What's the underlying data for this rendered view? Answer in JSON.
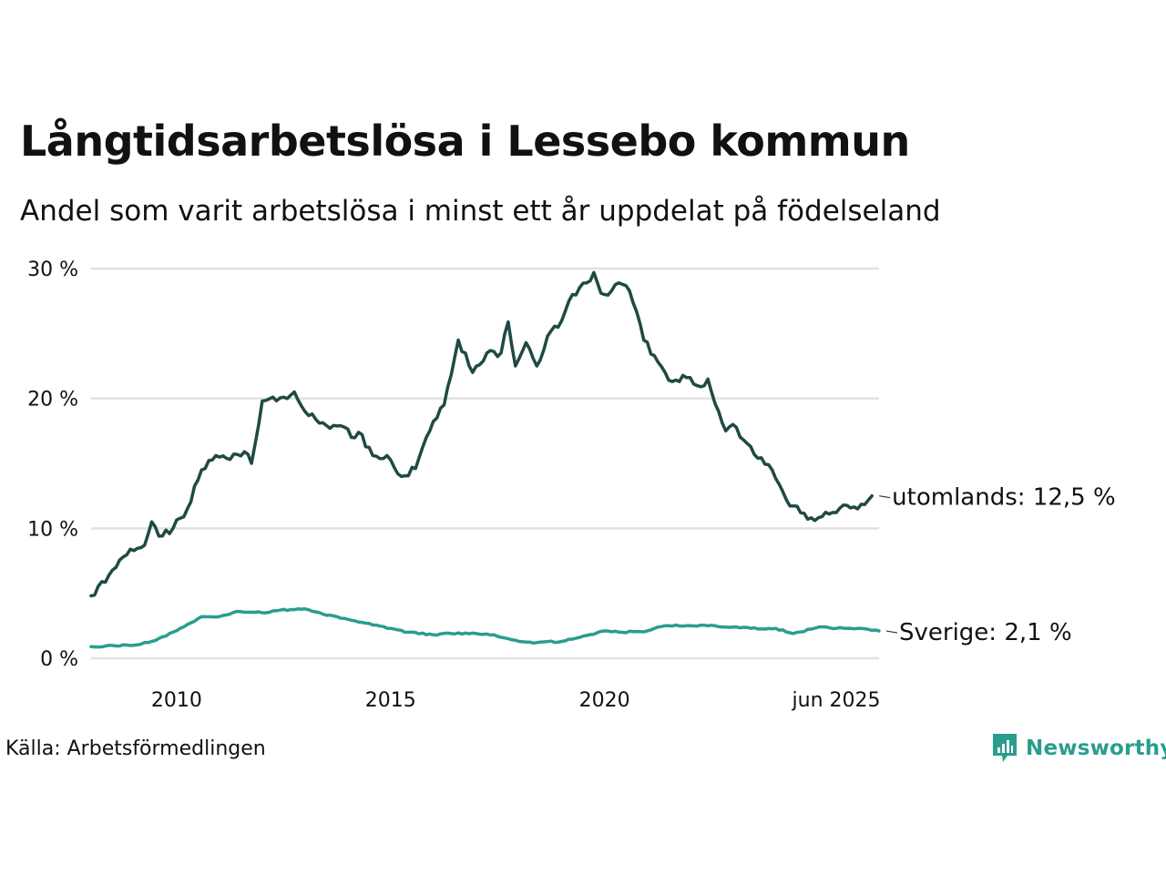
{
  "title": "Långtidsarbetslösa i Lessebo kommun",
  "subtitle": "Andel som varit arbetslösa i minst ett år uppdelat på födelseland",
  "source": "Källa: Arbetsförmedlingen",
  "brand": {
    "name": "Newsworthy",
    "icon": "newsworthy-logo-icon",
    "color": "#2a9d8f"
  },
  "chart_data": {
    "type": "line",
    "title": "Långtidsarbetslösa i Lessebo kommun",
    "subtitle": "Andel som varit arbetslösa i minst ett år uppdelat på födelseland",
    "x_start": "2008-01",
    "x_end": "2025-06",
    "x_ticks": [
      {
        "date": "2010-01",
        "label": "2010"
      },
      {
        "date": "2015-01",
        "label": "2015"
      },
      {
        "date": "2020-01",
        "label": "2020"
      },
      {
        "date": "2025-06",
        "label": "jun 2025"
      }
    ],
    "y_ticks": [
      {
        "value": 0,
        "label": "0 %"
      },
      {
        "value": 10,
        "label": "10 %"
      },
      {
        "value": 20,
        "label": "20 %"
      },
      {
        "value": 30,
        "label": "30 %"
      }
    ],
    "ylim": [
      0,
      30
    ],
    "grid": true,
    "series": [
      {
        "name": "utomlands",
        "end_label": "utomlands: 12,5 %",
        "color": "#1f4a44",
        "points": [
          [
            "2008-01",
            4.8
          ],
          [
            "2008-06",
            6.4
          ],
          [
            "2008-12",
            8.4
          ],
          [
            "2009-04",
            8.7
          ],
          [
            "2009-06",
            10.5
          ],
          [
            "2009-08",
            9.4
          ],
          [
            "2009-12",
            10.0
          ],
          [
            "2010-04",
            11.5
          ],
          [
            "2010-08",
            14.5
          ],
          [
            "2010-12",
            15.6
          ],
          [
            "2011-04",
            15.3
          ],
          [
            "2011-08",
            15.9
          ],
          [
            "2011-10",
            15.0
          ],
          [
            "2012-01",
            19.8
          ],
          [
            "2012-04",
            20.1
          ],
          [
            "2012-08",
            20.0
          ],
          [
            "2012-10",
            20.5
          ],
          [
            "2013-01",
            19.0
          ],
          [
            "2013-04",
            18.4
          ],
          [
            "2013-08",
            17.7
          ],
          [
            "2013-12",
            17.8
          ],
          [
            "2014-02",
            17.0
          ],
          [
            "2014-04",
            17.4
          ],
          [
            "2014-08",
            15.6
          ],
          [
            "2014-12",
            15.6
          ],
          [
            "2015-04",
            14.0
          ],
          [
            "2015-08",
            14.6
          ],
          [
            "2015-12",
            17.5
          ],
          [
            "2016-04",
            19.5
          ],
          [
            "2016-08",
            24.5
          ],
          [
            "2016-12",
            22.0
          ],
          [
            "2017-04",
            23.5
          ],
          [
            "2017-08",
            23.5
          ],
          [
            "2017-10",
            25.9
          ],
          [
            "2017-12",
            22.5
          ],
          [
            "2018-03",
            24.3
          ],
          [
            "2018-06",
            22.5
          ],
          [
            "2018-10",
            25.2
          ],
          [
            "2019-01",
            26.0
          ],
          [
            "2019-04",
            28.0
          ],
          [
            "2019-08",
            28.9
          ],
          [
            "2019-10",
            29.7
          ],
          [
            "2019-12",
            28.1
          ],
          [
            "2020-03",
            28.3
          ],
          [
            "2020-05",
            28.9
          ],
          [
            "2020-08",
            28.3
          ],
          [
            "2020-10",
            26.7
          ],
          [
            "2020-12",
            24.5
          ],
          [
            "2021-04",
            22.8
          ],
          [
            "2021-08",
            21.3
          ],
          [
            "2021-12",
            21.6
          ],
          [
            "2022-04",
            20.9
          ],
          [
            "2022-06",
            21.5
          ],
          [
            "2022-09",
            19.0
          ],
          [
            "2022-11",
            17.5
          ],
          [
            "2023-01",
            18.0
          ],
          [
            "2023-04",
            16.8
          ],
          [
            "2023-08",
            15.4
          ],
          [
            "2023-12",
            14.5
          ],
          [
            "2024-04",
            12.2
          ],
          [
            "2024-08",
            11.2
          ],
          [
            "2024-12",
            10.6
          ],
          [
            "2025-04",
            11.1
          ],
          [
            "2025-08",
            11.8
          ],
          [
            "2025-12",
            11.5
          ],
          [
            "2026-04",
            12.5
          ]
        ]
      },
      {
        "name": "Sverige",
        "end_label": "Sverige:  2,1 %",
        "color": "#2a9d8f",
        "points": [
          [
            "2008-01",
            0.9
          ],
          [
            "2009-01",
            1.0
          ],
          [
            "2009-06",
            1.3
          ],
          [
            "2009-10",
            1.7
          ],
          [
            "2010-04",
            2.6
          ],
          [
            "2010-08",
            3.2
          ],
          [
            "2011-01",
            3.2
          ],
          [
            "2011-06",
            3.6
          ],
          [
            "2012-01",
            3.5
          ],
          [
            "2012-06",
            3.7
          ],
          [
            "2013-01",
            3.8
          ],
          [
            "2013-06",
            3.4
          ],
          [
            "2014-01",
            3.0
          ],
          [
            "2014-06",
            2.7
          ],
          [
            "2015-01",
            2.3
          ],
          [
            "2015-06",
            2.0
          ],
          [
            "2016-01",
            1.8
          ],
          [
            "2016-06",
            1.9
          ],
          [
            "2017-01",
            1.9
          ],
          [
            "2017-06",
            1.8
          ],
          [
            "2018-01",
            1.3
          ],
          [
            "2018-06",
            1.2
          ],
          [
            "2019-01",
            1.3
          ],
          [
            "2019-06",
            1.6
          ],
          [
            "2020-01",
            2.1
          ],
          [
            "2020-06",
            2.0
          ],
          [
            "2021-01",
            2.1
          ],
          [
            "2021-06",
            2.5
          ],
          [
            "2022-01",
            2.5
          ],
          [
            "2022-06",
            2.5
          ],
          [
            "2023-01",
            2.4
          ],
          [
            "2023-06",
            2.3
          ],
          [
            "2024-01",
            2.3
          ],
          [
            "2024-06",
            1.9
          ],
          [
            "2025-01",
            2.4
          ],
          [
            "2025-06",
            2.3
          ],
          [
            "2026-01",
            2.3
          ],
          [
            "2026-06",
            2.1
          ]
        ]
      }
    ]
  }
}
